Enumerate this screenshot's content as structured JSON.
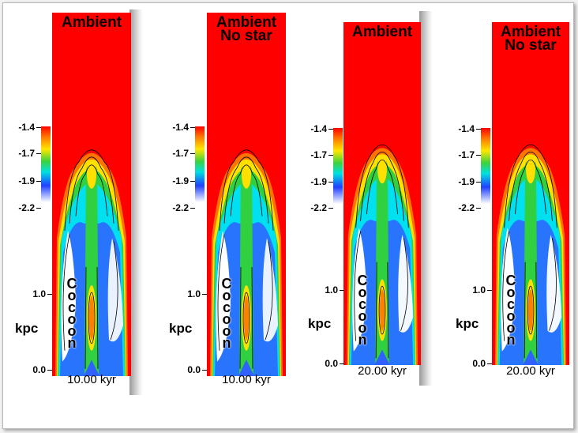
{
  "panels": [
    {
      "labels": [
        "Ambient"
      ],
      "colorbar_ticks": [
        "-1.4",
        "-1.7",
        "-1.9",
        "-2.2"
      ],
      "axis_ticks": [
        "1.0",
        "0.0"
      ],
      "axis_unit": "kpc",
      "region_label": "Cocoon",
      "time": "10.00 kyr"
    },
    {
      "labels": [
        "Ambient",
        "No star"
      ],
      "colorbar_ticks": [
        "-1.4",
        "-1.7",
        "-1.9",
        "-2.2"
      ],
      "axis_ticks": [
        "1.0",
        "0.0"
      ],
      "axis_unit": "kpc",
      "region_label": "Cocoon",
      "time": "10.00 kyr"
    },
    {
      "labels": [
        "Ambient"
      ],
      "colorbar_ticks": [
        "-1.4",
        "-1.7",
        "-1.9",
        "-2.2"
      ],
      "axis_ticks": [
        "1.0",
        "0.0"
      ],
      "axis_unit": "kpc",
      "region_label": "Cocoon",
      "time": "20.00 kyr"
    },
    {
      "labels": [
        "Ambient",
        "No star"
      ],
      "colorbar_ticks": [
        "-1.4",
        "-1.7",
        "-1.9",
        "-2.2"
      ],
      "axis_ticks": [
        "1.0",
        "0.0"
      ],
      "axis_unit": "kpc",
      "region_label": "Cocoon",
      "time": "20.00 kyr"
    }
  ],
  "colors": {
    "ambient": "#ff0000",
    "cavity": "#ffffff",
    "cocoon_blue": "#3060ff",
    "cyan": "#00e0f0",
    "green": "#30d040",
    "yellow": "#ffe000",
    "orange": "#ff8000"
  }
}
